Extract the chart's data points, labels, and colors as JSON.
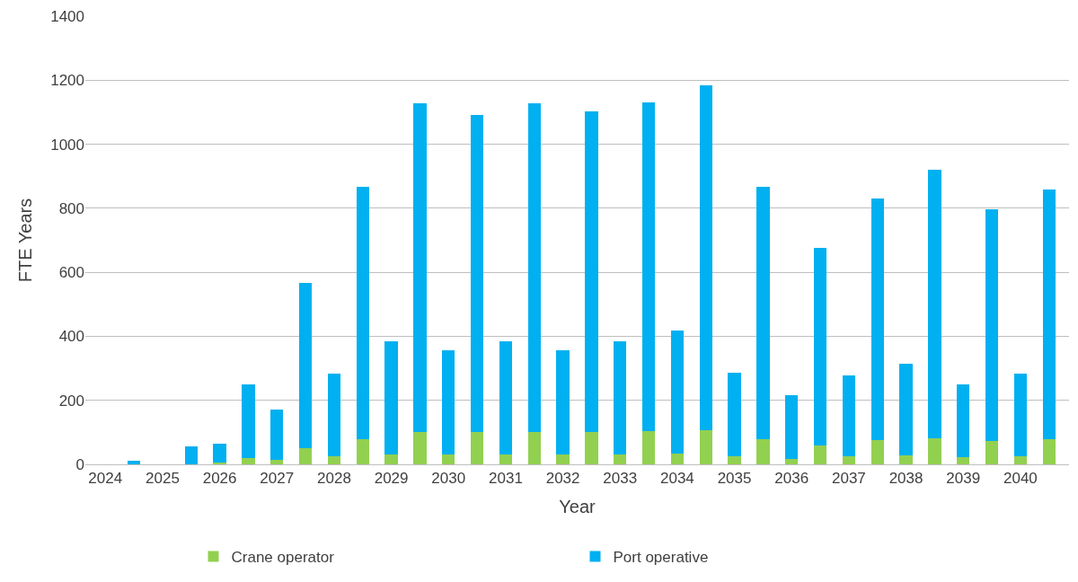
{
  "chart_data": {
    "type": "bar",
    "stacked": true,
    "xlabel": "Year",
    "ylabel": "FTE Years",
    "categories": [
      "2024",
      null,
      "2025",
      null,
      "2026",
      null,
      "2027",
      null,
      "2028",
      null,
      "2029",
      null,
      "2030",
      null,
      "2031",
      null,
      "2032",
      null,
      "2033",
      null,
      "2034",
      null,
      "2035",
      null,
      "2036",
      null,
      "2037",
      null,
      "2038",
      null,
      "2039",
      null,
      "2040",
      null
    ],
    "series": [
      {
        "name": "Crane operator",
        "color": "#92d050",
        "values": [
          0,
          null,
          0,
          null,
          5,
          20,
          15,
          50,
          25,
          78,
          32,
          100,
          32,
          100,
          32,
          100,
          32,
          100,
          32,
          103,
          35,
          107,
          25,
          78,
          18,
          60,
          25,
          75,
          28,
          82,
          22,
          72,
          25,
          78
        ]
      },
      {
        "name": "Port operative",
        "color": "#00b0f0",
        "values": [
          0,
          10,
          0,
          57,
          60,
          230,
          157,
          517,
          257,
          790,
          353,
          1027,
          325,
          992,
          353,
          1027,
          325,
          1003,
          353,
          1027,
          382,
          1076,
          260,
          790,
          197,
          617,
          253,
          755,
          285,
          838,
          228,
          726,
          257,
          780
        ]
      }
    ],
    "ylim": [
      0,
      1400
    ],
    "yticks": [
      0,
      200,
      400,
      600,
      800,
      1000,
      1200,
      1400
    ],
    "grid": "y",
    "legend": "bottom"
  }
}
